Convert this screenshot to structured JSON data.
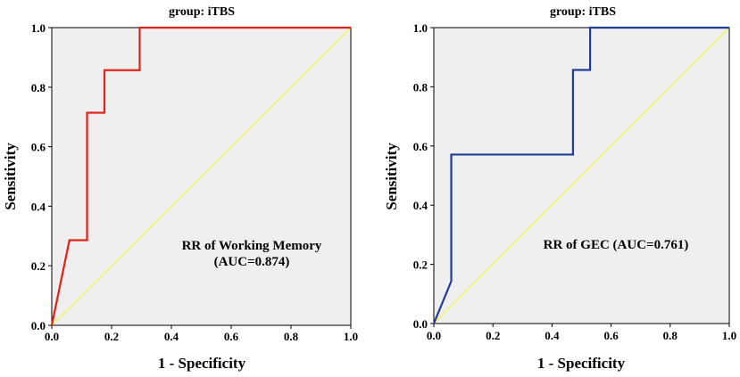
{
  "chart_data": [
    {
      "type": "line",
      "title": "group: iTBS",
      "xlabel": "1 - Specificity",
      "ylabel": "Sensitivity",
      "xlim": [
        0,
        1
      ],
      "ylim": [
        0,
        1
      ],
      "xticks": [
        "0.0",
        "0.2",
        "0.4",
        "0.6",
        "0.8",
        "1.0"
      ],
      "yticks": [
        "0.0",
        "0.2",
        "0.4",
        "0.6",
        "0.8",
        "1.0"
      ],
      "annotation": [
        "RR of Working Memory",
        "(AUC=0.874)"
      ],
      "background": "#efefef",
      "series": [
        {
          "role": "roc",
          "color": "#e2231a",
          "x": [
            0,
            0.059,
            0.118,
            0.118,
            0.176,
            0.176,
            0.294,
            0.294,
            1.0
          ],
          "y": [
            0,
            0.286,
            0.286,
            0.714,
            0.714,
            0.857,
            0.857,
            1.0,
            1.0
          ]
        },
        {
          "role": "reference",
          "color": "#f5f542",
          "x": [
            0,
            1
          ],
          "y": [
            0,
            1
          ]
        }
      ]
    },
    {
      "type": "line",
      "title": "group: iTBS",
      "xlabel": "1 - Specificity",
      "ylabel": "Sensitivity",
      "xlim": [
        0,
        1
      ],
      "ylim": [
        0,
        1
      ],
      "xticks": [
        "0.0",
        "0.2",
        "0.4",
        "0.6",
        "0.8",
        "1.0"
      ],
      "yticks": [
        "0.0",
        "0.2",
        "0.4",
        "0.6",
        "0.8",
        "1.0"
      ],
      "annotation": [
        "RR of GEC (AUC=0.761)"
      ],
      "background": "#efefef",
      "series": [
        {
          "role": "roc",
          "color": "#1f3d99",
          "x": [
            0,
            0.059,
            0.059,
            0.471,
            0.471,
            0.529,
            0.529,
            1.0
          ],
          "y": [
            0,
            0.143,
            0.571,
            0.571,
            0.857,
            0.857,
            1.0,
            1.0
          ]
        },
        {
          "role": "reference",
          "color": "#f5f542",
          "x": [
            0,
            1
          ],
          "y": [
            0,
            1
          ]
        }
      ]
    }
  ]
}
